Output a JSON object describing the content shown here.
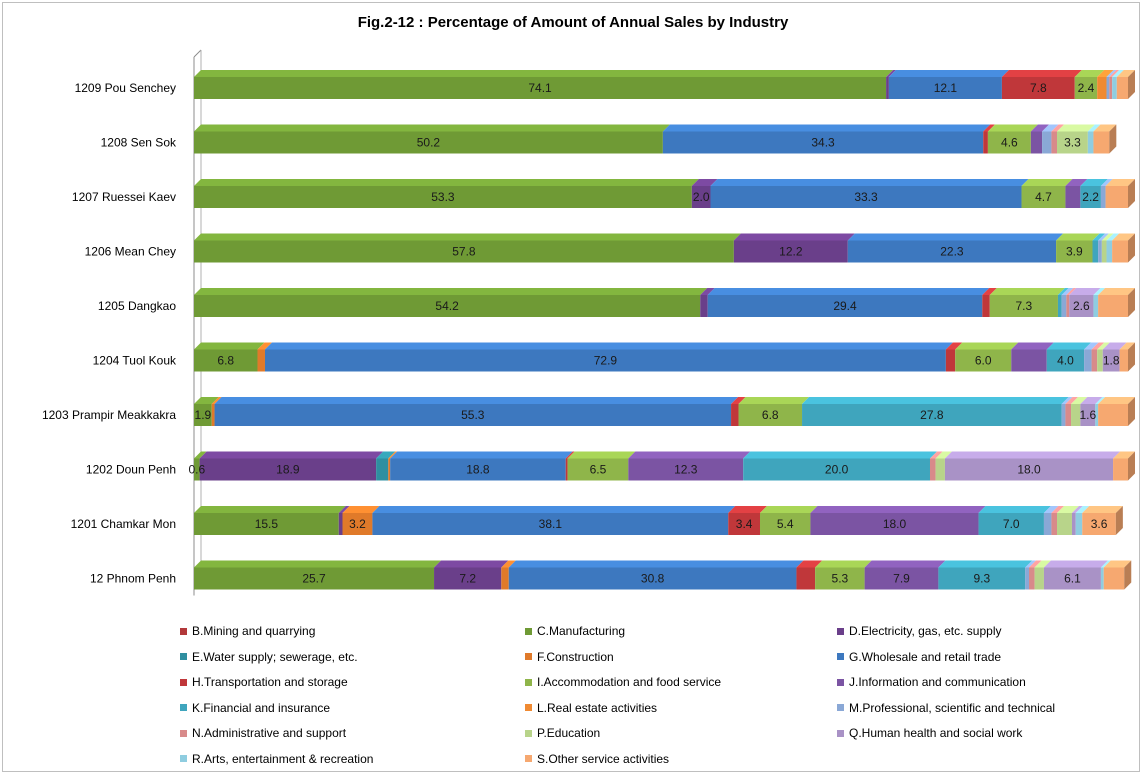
{
  "chart_data": {
    "type": "bar",
    "orientation": "horizontal",
    "stacked": "percent",
    "title": "Fig.2-12 : Percentage of Amount of Annual Sales by Industry",
    "categories": [
      "1209 Pou Senchey",
      "1208 Sen Sok",
      "1207 Ruessei Kaev",
      "1206 Mean Chey",
      "1205 Dangkao",
      "1204 Tuol Kouk",
      "1203 Prampir Meakkakra",
      "1202 Doun Penh",
      "1201 Chamkar Mon",
      "12 Phnom Penh"
    ],
    "xlim": [
      0,
      100
    ],
    "legend_position": "bottom",
    "grid": false,
    "series": [
      {
        "name": "B.Mining and quarrying",
        "color": "#b2383a",
        "values": [
          0.0,
          0.0,
          0.0,
          0.0,
          0.0,
          0.0,
          0.0,
          0.0,
          0.0,
          0.0
        ]
      },
      {
        "name": "C.Manufacturing",
        "color": "#6f9a35",
        "values": [
          74.1,
          50.2,
          53.3,
          57.8,
          54.2,
          6.8,
          1.9,
          0.6,
          15.5,
          25.7
        ]
      },
      {
        "name": "D.Electricity, gas, etc. supply",
        "color": "#6a3f8a",
        "values": [
          0.3,
          0.0,
          2.0,
          12.2,
          0.8,
          0.0,
          0.0,
          18.9,
          0.4,
          7.2
        ]
      },
      {
        "name": "E.Water supply; sewerage, etc.",
        "color": "#2f8fa0",
        "values": [
          0.0,
          0.0,
          0.0,
          0.0,
          0.0,
          0.0,
          0.0,
          1.3,
          0.0,
          0.0
        ]
      },
      {
        "name": "F.Construction",
        "color": "#e07a2a",
        "values": [
          0.0,
          0.0,
          0.0,
          0.0,
          0.0,
          0.8,
          0.3,
          0.2,
          3.2,
          0.8
        ]
      },
      {
        "name": "G.Wholesale and retail trade",
        "color": "#3d78bf",
        "values": [
          12.1,
          34.3,
          33.3,
          22.3,
          29.4,
          72.9,
          55.3,
          18.8,
          38.1,
          30.8
        ]
      },
      {
        "name": "H.Transportation and storage",
        "color": "#c0373a",
        "values": [
          7.8,
          0.5,
          0.0,
          0.0,
          0.8,
          1.0,
          0.8,
          0.2,
          3.4,
          2.0
        ]
      },
      {
        "name": "I.Accommodation and food service",
        "color": "#8fb54a",
        "values": [
          2.4,
          4.6,
          4.7,
          3.9,
          7.3,
          6.0,
          6.8,
          6.5,
          5.4,
          5.3
        ]
      },
      {
        "name": "J.Information and communication",
        "color": "#7b54a3",
        "values": [
          0.0,
          1.2,
          1.6,
          0.0,
          0.0,
          3.8,
          0.0,
          12.3,
          18.0,
          7.9
        ]
      },
      {
        "name": "K.Financial and insurance",
        "color": "#3fa5bd",
        "values": [
          0.0,
          0.0,
          2.2,
          0.6,
          0.4,
          4.0,
          27.8,
          20.0,
          7.0,
          9.3
        ]
      },
      {
        "name": "L.Real estate activities",
        "color": "#f08a32",
        "values": [
          1.0,
          0.0,
          0.0,
          0.0,
          0.0,
          0.0,
          0.0,
          0.0,
          0.0,
          0.0
        ]
      },
      {
        "name": "M.Professional, scientific and technical",
        "color": "#8aa8d6",
        "values": [
          0.3,
          1.0,
          0.5,
          0.4,
          0.5,
          0.8,
          0.4,
          0.0,
          0.8,
          0.4
        ]
      },
      {
        "name": "N.Administrative and support",
        "color": "#d88a8a",
        "values": [
          0.3,
          0.6,
          0.0,
          0.0,
          0.3,
          0.6,
          0.6,
          0.6,
          0.6,
          0.6
        ]
      },
      {
        "name": "P.Education",
        "color": "#b8d48a",
        "values": [
          0.0,
          3.3,
          0.0,
          0.5,
          0.0,
          0.6,
          1.0,
          1.0,
          1.6,
          1.0
        ]
      },
      {
        "name": "Q.Human health and social work",
        "color": "#a992c6",
        "values": [
          0.0,
          0.0,
          0.0,
          0.0,
          2.6,
          1.8,
          1.6,
          18.0,
          0.4,
          6.1
        ]
      },
      {
        "name": "R.Arts, entertainment & recreation",
        "color": "#8fcde0",
        "values": [
          0.5,
          0.6,
          0.0,
          0.6,
          0.5,
          0.0,
          0.3,
          0.0,
          0.7,
          0.3
        ]
      },
      {
        "name": "S.Other service activities",
        "color": "#f6a870",
        "values": [
          1.2,
          1.7,
          2.4,
          1.7,
          3.2,
          0.9,
          3.2,
          1.6,
          3.6,
          2.2
        ]
      }
    ],
    "data_labels": [
      [
        {
          "series": 1,
          "text": "74.1"
        },
        {
          "series": 5,
          "text": "12.1"
        },
        {
          "series": 6,
          "text": "7.8"
        },
        {
          "series": 7,
          "text": "2.4"
        }
      ],
      [
        {
          "series": 1,
          "text": "50.2"
        },
        {
          "series": 5,
          "text": "34.3"
        },
        {
          "series": 7,
          "text": "4.6"
        },
        {
          "series": 13,
          "text": "3.3"
        }
      ],
      [
        {
          "series": 1,
          "text": "53.3"
        },
        {
          "series": 2,
          "text": "2.0"
        },
        {
          "series": 5,
          "text": "33.3"
        },
        {
          "series": 7,
          "text": "4.7"
        },
        {
          "series": 9,
          "text": "2.2"
        }
      ],
      [
        {
          "series": 1,
          "text": "57.8"
        },
        {
          "series": 2,
          "text": "12.2"
        },
        {
          "series": 5,
          "text": "22.3"
        },
        {
          "series": 7,
          "text": "3.9"
        }
      ],
      [
        {
          "series": 1,
          "text": "54.2"
        },
        {
          "series": 5,
          "text": "29.4"
        },
        {
          "series": 7,
          "text": "7.3"
        },
        {
          "series": 14,
          "text": "2.6"
        }
      ],
      [
        {
          "series": 1,
          "text": "6.8"
        },
        {
          "series": 5,
          "text": "72.9"
        },
        {
          "series": 7,
          "text": "6.0"
        },
        {
          "series": 9,
          "text": "4.0"
        },
        {
          "series": 14,
          "text": "1.8"
        }
      ],
      [
        {
          "series": 1,
          "text": "1.9"
        },
        {
          "series": 5,
          "text": "55.3"
        },
        {
          "series": 7,
          "text": "6.8"
        },
        {
          "series": 9,
          "text": "27.8"
        },
        {
          "series": 14,
          "text": "1.6"
        }
      ],
      [
        {
          "series": 1,
          "text": "0.6"
        },
        {
          "series": 2,
          "text": "18.9"
        },
        {
          "series": 5,
          "text": "18.8"
        },
        {
          "series": 7,
          "text": "6.5"
        },
        {
          "series": 8,
          "text": "12.3"
        },
        {
          "series": 9,
          "text": "20.0"
        },
        {
          "series": 14,
          "text": "18.0"
        }
      ],
      [
        {
          "series": 1,
          "text": "15.5"
        },
        {
          "series": 4,
          "text": "3.2"
        },
        {
          "series": 5,
          "text": "38.1"
        },
        {
          "series": 6,
          "text": "3.4"
        },
        {
          "series": 7,
          "text": "5.4"
        },
        {
          "series": 8,
          "text": "18.0"
        },
        {
          "series": 9,
          "text": "7.0"
        },
        {
          "series": 16,
          "text": "3.6"
        }
      ],
      [
        {
          "series": 1,
          "text": "25.7"
        },
        {
          "series": 2,
          "text": "7.2"
        },
        {
          "series": 5,
          "text": "30.8"
        },
        {
          "series": 7,
          "text": "5.3"
        },
        {
          "series": 8,
          "text": "7.9"
        },
        {
          "series": 9,
          "text": "9.3"
        },
        {
          "series": 14,
          "text": "6.1"
        }
      ]
    ]
  }
}
